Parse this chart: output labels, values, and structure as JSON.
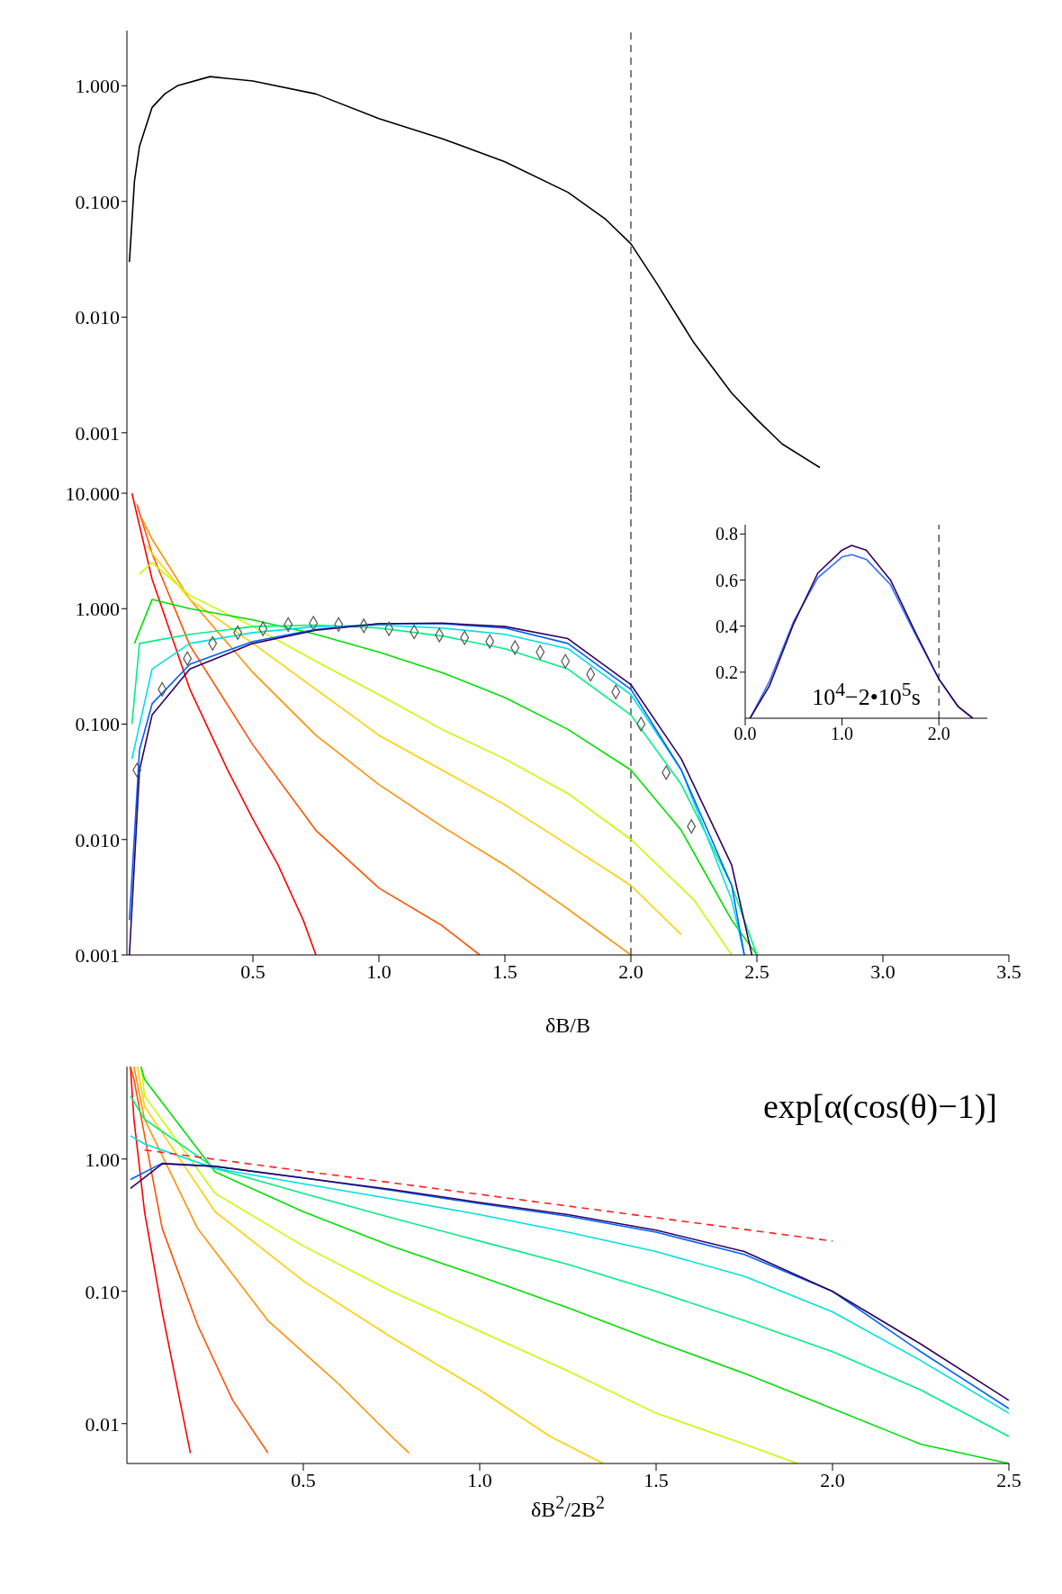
{
  "chart_data": [
    {
      "type": "line",
      "xlim": [
        0,
        3.5
      ],
      "xticks": [
        0.5,
        1,
        1.5,
        2,
        2.5,
        3,
        3.5
      ],
      "ylim": [
        0.0003,
        3
      ],
      "yticks": [
        {
          "value": 0.001,
          "label": "0.001"
        },
        {
          "value": 0.01,
          "label": "0.010"
        },
        {
          "value": 0.1,
          "label": "0.100"
        },
        {
          "value": 1,
          "label": "1.000"
        }
      ],
      "log": "y",
      "tick_labels": "y",
      "ref_lines": [
        {
          "axis": "x",
          "value": 2.0,
          "color": "#000000",
          "line_style": "dashed"
        }
      ],
      "series": [
        {
          "color": "#000000",
          "x": [
            0.01,
            0.03,
            0.05,
            0.1,
            0.15,
            0.2,
            0.33,
            0.5,
            0.75,
            1.0,
            1.25,
            1.5,
            1.75,
            1.9,
            2.0,
            2.1,
            2.25,
            2.4,
            2.5,
            2.6,
            2.75
          ],
          "values": [
            0.03,
            0.15,
            0.3,
            0.65,
            0.85,
            1.0,
            1.2,
            1.1,
            0.85,
            0.52,
            0.35,
            0.22,
            0.12,
            0.07,
            0.043,
            0.02,
            0.006,
            0.0022,
            0.0013,
            0.0008,
            0.0005
          ]
        }
      ]
    },
    {
      "type": "line",
      "xlabel": "δB/B",
      "xlim": [
        0,
        3.5
      ],
      "xticks": [
        0.5,
        {
          "value": 1.0,
          "label": "1.0"
        },
        1.5,
        {
          "value": 2.0,
          "label": "2.0"
        },
        2.5,
        {
          "value": 3.0,
          "label": "3.0"
        },
        3.5
      ],
      "ylim": [
        0.001,
        10
      ],
      "yticks": [
        {
          "value": 0.001,
          "label": "0.001"
        },
        {
          "value": 0.01,
          "label": "0.010"
        },
        {
          "value": 0.1,
          "label": "0.100"
        },
        {
          "value": 1,
          "label": "1.000"
        },
        {
          "value": 10,
          "label": "10.000"
        }
      ],
      "log": "y",
      "ref_lines": [
        {
          "axis": "x",
          "value": 2.0,
          "color": "#000000",
          "line_style": "dashed"
        }
      ],
      "series": [
        {
          "color": "#ff0000",
          "x": [
            0.02,
            0.1,
            0.25,
            0.4,
            0.5,
            0.6,
            0.7,
            0.75
          ],
          "values": [
            10,
            1.8,
            0.2,
            0.04,
            0.015,
            0.006,
            0.002,
            0.001
          ]
        },
        {
          "color": "#ff5000",
          "x": [
            0.04,
            0.1,
            0.25,
            0.5,
            0.75,
            1.0,
            1.25,
            1.4
          ],
          "values": [
            8,
            3,
            0.48,
            0.066,
            0.012,
            0.0038,
            0.0018,
            0.001
          ]
        },
        {
          "color": "#ff9000",
          "x": [
            0.06,
            0.1,
            0.25,
            0.5,
            0.75,
            1.0,
            1.25,
            1.5,
            1.75,
            2.0
          ],
          "values": [
            6,
            4,
            1.2,
            0.28,
            0.08,
            0.03,
            0.013,
            0.006,
            0.0025,
            0.001
          ]
        },
        {
          "color": "#ffd000",
          "x": [
            0.08,
            0.1,
            0.25,
            0.5,
            0.75,
            1.0,
            1.25,
            1.5,
            1.75,
            2.0,
            2.2
          ],
          "values": [
            3.5,
            3,
            1.2,
            0.5,
            0.2,
            0.08,
            0.04,
            0.02,
            0.009,
            0.004,
            0.0015
          ]
        },
        {
          "color": "#c0ff00",
          "x": [
            0.05,
            0.1,
            0.25,
            0.5,
            0.75,
            1.0,
            1.25,
            1.5,
            1.75,
            2.0,
            2.25,
            2.4
          ],
          "values": [
            2,
            2.5,
            1.3,
            0.7,
            0.35,
            0.18,
            0.09,
            0.05,
            0.025,
            0.01,
            0.003,
            0.001
          ]
        },
        {
          "color": "#00e000",
          "x": [
            0.03,
            0.1,
            0.25,
            0.5,
            0.75,
            1.0,
            1.25,
            1.5,
            1.75,
            2.0,
            2.2,
            2.4,
            2.5
          ],
          "values": [
            0.5,
            1.2,
            1.0,
            0.8,
            0.6,
            0.42,
            0.28,
            0.17,
            0.09,
            0.04,
            0.012,
            0.002,
            0.001
          ]
        },
        {
          "color": "#00f080",
          "x": [
            0.02,
            0.05,
            0.25,
            0.5,
            0.75,
            1.0,
            1.25,
            1.5,
            1.75,
            2.0,
            2.2,
            2.4,
            2.5
          ],
          "values": [
            0.1,
            0.5,
            0.6,
            0.7,
            0.72,
            0.68,
            0.58,
            0.45,
            0.3,
            0.12,
            0.03,
            0.004,
            0.001
          ]
        },
        {
          "color": "#00e0e0",
          "x": [
            0.02,
            0.1,
            0.25,
            0.5,
            0.75,
            1.0,
            1.25,
            1.5,
            1.75,
            2.0,
            2.2,
            2.4,
            2.45
          ],
          "values": [
            0.05,
            0.3,
            0.5,
            0.62,
            0.7,
            0.72,
            0.68,
            0.6,
            0.45,
            0.18,
            0.04,
            0.003,
            0.001
          ]
        },
        {
          "color": "#0060ff",
          "x": [
            0.01,
            0.05,
            0.1,
            0.25,
            0.5,
            0.75,
            1.0,
            1.25,
            1.5,
            1.75,
            2.0,
            2.2,
            2.4,
            2.45
          ],
          "values": [
            0.002,
            0.06,
            0.15,
            0.33,
            0.52,
            0.66,
            0.74,
            0.74,
            0.68,
            0.5,
            0.2,
            0.04,
            0.004,
            0.001
          ]
        },
        {
          "color": "#300060",
          "x": [
            0.01,
            0.05,
            0.1,
            0.25,
            0.5,
            0.75,
            1.0,
            1.25,
            1.5,
            1.75,
            2.0,
            2.2,
            2.4,
            2.48
          ],
          "values": [
            0.001,
            0.04,
            0.12,
            0.3,
            0.5,
            0.65,
            0.74,
            0.75,
            0.7,
            0.55,
            0.22,
            0.05,
            0.006,
            0.001
          ]
        },
        {
          "type": "scatter",
          "marker": "diamond",
          "color": "#555555",
          "x": [
            0.04,
            0.14,
            0.24,
            0.34,
            0.44,
            0.54,
            0.64,
            0.74,
            0.84,
            0.94,
            1.04,
            1.14,
            1.24,
            1.34,
            1.44,
            1.54,
            1.64,
            1.74,
            1.84,
            1.94,
            2.04,
            2.14,
            2.24
          ],
          "values": [
            0.04,
            0.2,
            0.37,
            0.5,
            0.62,
            0.67,
            0.73,
            0.75,
            0.73,
            0.71,
            0.67,
            0.63,
            0.59,
            0.56,
            0.52,
            0.46,
            0.42,
            0.35,
            0.27,
            0.19,
            0.1,
            0.038,
            0.013
          ]
        }
      ]
    },
    {
      "type": "line",
      "annotations": [
        "10$^{4}$−2•10$^{5}$s"
      ],
      "xlim": [
        0,
        2.5
      ],
      "xticks": [
        {
          "value": 0,
          "label": "0.0"
        },
        {
          "value": 1,
          "label": "1.0"
        },
        {
          "value": 2,
          "label": "2.0"
        }
      ],
      "ylim": [
        0,
        0.84
      ],
      "yticks": [
        0.2,
        0.4,
        0.6,
        0.8
      ],
      "ref_lines": [
        {
          "axis": "x",
          "value": 2.0,
          "color": "#000000",
          "line_style": "dashed"
        }
      ],
      "series": [
        {
          "color": "#3070ff",
          "x": [
            0.05,
            0.25,
            0.5,
            0.75,
            1.0,
            1.1,
            1.25,
            1.5,
            1.75,
            2.0,
            2.2,
            2.35
          ],
          "values": [
            0,
            0.16,
            0.42,
            0.61,
            0.7,
            0.71,
            0.69,
            0.58,
            0.37,
            0.17,
            0.05,
            0
          ]
        },
        {
          "color": "#300060",
          "x": [
            0.05,
            0.25,
            0.5,
            0.75,
            1.0,
            1.1,
            1.25,
            1.5,
            1.75,
            2.0,
            2.2,
            2.35
          ],
          "values": [
            0,
            0.14,
            0.41,
            0.63,
            0.73,
            0.75,
            0.73,
            0.6,
            0.38,
            0.17,
            0.05,
            0
          ]
        }
      ]
    },
    {
      "type": "line",
      "xlabel": "δB$^{2}$/2B$^{2}$",
      "annotations": [
        "exp[α(cos(θ)−1)]"
      ],
      "xlim": [
        0,
        2.5
      ],
      "xticks": [
        0.5,
        {
          "value": 1.0,
          "label": "1.0"
        },
        1.5,
        {
          "value": 2.0,
          "label": "2.0"
        },
        2.5
      ],
      "ylim": [
        0.005,
        5
      ],
      "yticks": [
        {
          "value": 0.01,
          "label": "0.01"
        },
        {
          "value": 0.1,
          "label": "0.10"
        },
        {
          "value": 1,
          "label": "1.00"
        }
      ],
      "log": "y",
      "series": [
        {
          "color": "#ff0000",
          "x": [
            0.01,
            0.02,
            0.05,
            0.1,
            0.15,
            0.18
          ],
          "values": [
            5,
            2,
            0.4,
            0.07,
            0.015,
            0.006
          ]
        },
        {
          "color": "#ff5000",
          "x": [
            0.01,
            0.02,
            0.1,
            0.2,
            0.3,
            0.4
          ],
          "values": [
            5,
            4,
            0.3,
            0.056,
            0.015,
            0.006
          ]
        },
        {
          "color": "#ff9000",
          "x": [
            0.02,
            0.05,
            0.2,
            0.4,
            0.6,
            0.75,
            0.8
          ],
          "values": [
            5,
            2,
            0.3,
            0.06,
            0.02,
            0.008,
            0.006
          ]
        },
        {
          "color": "#ffd000",
          "x": [
            0.03,
            0.05,
            0.25,
            0.5,
            0.75,
            1.0,
            1.2,
            1.35
          ],
          "values": [
            5,
            2.5,
            0.4,
            0.12,
            0.045,
            0.018,
            0.008,
            0.005
          ]
        },
        {
          "color": "#c0ff00",
          "x": [
            0.04,
            0.05,
            0.25,
            0.5,
            0.75,
            1.0,
            1.25,
            1.5,
            1.75,
            1.9
          ],
          "values": [
            5,
            3,
            0.55,
            0.22,
            0.1,
            0.05,
            0.025,
            0.012,
            0.007,
            0.005
          ]
        },
        {
          "color": "#00e000",
          "x": [
            0.04,
            0.05,
            0.25,
            0.5,
            0.75,
            1.0,
            1.25,
            1.5,
            1.75,
            2.0,
            2.25,
            2.5
          ],
          "values": [
            5,
            4,
            0.8,
            0.4,
            0.22,
            0.13,
            0.075,
            0.042,
            0.024,
            0.013,
            0.007,
            0.005
          ]
        },
        {
          "color": "#00f080",
          "x": [
            0.01,
            0.05,
            0.25,
            0.5,
            0.75,
            1.0,
            1.25,
            1.5,
            1.75,
            2.0,
            2.25,
            2.5
          ],
          "values": [
            3,
            2,
            0.85,
            0.55,
            0.36,
            0.24,
            0.16,
            0.1,
            0.06,
            0.035,
            0.018,
            0.008
          ]
        },
        {
          "color": "#00e0e0",
          "x": [
            0.01,
            0.05,
            0.25,
            0.5,
            0.75,
            1.0,
            1.25,
            1.5,
            1.75,
            2.0,
            2.25,
            2.5
          ],
          "values": [
            1.5,
            1.3,
            0.85,
            0.65,
            0.5,
            0.38,
            0.28,
            0.2,
            0.13,
            0.07,
            0.03,
            0.012
          ]
        },
        {
          "color": "#0060ff",
          "x": [
            0.01,
            0.1,
            0.25,
            0.5,
            0.75,
            1.0,
            1.25,
            1.5,
            1.75,
            2.0,
            2.25,
            2.5
          ],
          "values": [
            0.7,
            0.93,
            0.88,
            0.72,
            0.58,
            0.46,
            0.37,
            0.28,
            0.19,
            0.1,
            0.035,
            0.013
          ]
        },
        {
          "color": "#300060",
          "x": [
            0.01,
            0.1,
            0.25,
            0.5,
            0.75,
            1.0,
            1.25,
            1.5,
            1.75,
            2.0,
            2.25,
            2.5
          ],
          "values": [
            0.6,
            0.92,
            0.88,
            0.72,
            0.59,
            0.47,
            0.38,
            0.29,
            0.2,
            0.1,
            0.04,
            0.015
          ]
        },
        {
          "color": "#ff2020",
          "line_style": "dashed",
          "x": [
            0.05,
            2.0
          ],
          "values": [
            1.17,
            0.24
          ]
        }
      ]
    }
  ]
}
